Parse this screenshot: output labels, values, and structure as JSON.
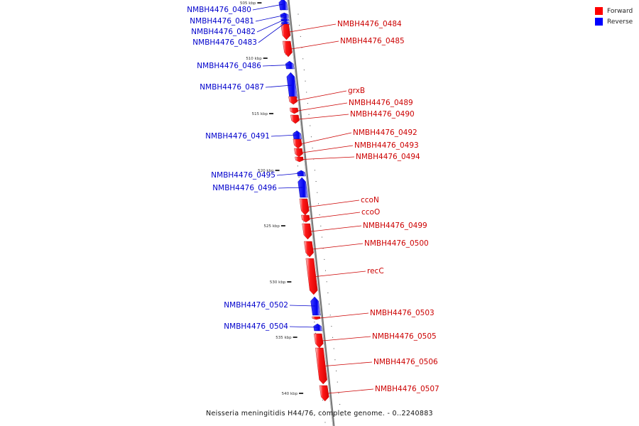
{
  "legend": {
    "forward_label": "Forward",
    "reverse_label": "Reverse",
    "forward_color": "#ff0000",
    "reverse_color": "#0000ff"
  },
  "caption": "Neisseria meningitidis H44/76, complete genome. - 0..2240883",
  "ticks": [
    {
      "label": "505 kbp"
    },
    {
      "label": "510 kbp"
    },
    {
      "label": "515 kbp"
    },
    {
      "label": "520 kbp"
    },
    {
      "label": "525 kbp"
    },
    {
      "label": "530 kbp"
    },
    {
      "label": "535 kbp"
    },
    {
      "label": "540 kbp"
    }
  ],
  "genes": [
    {
      "name": "NMBH4476_0480",
      "strand": "reverse"
    },
    {
      "name": "NMBH4476_0481",
      "strand": "reverse"
    },
    {
      "name": "NMBH4476_0482",
      "strand": "reverse"
    },
    {
      "name": "NMBH4476_0483",
      "strand": "reverse"
    },
    {
      "name": "NMBH4476_0484",
      "strand": "forward"
    },
    {
      "name": "NMBH4476_0485",
      "strand": "forward"
    },
    {
      "name": "NMBH4476_0486",
      "strand": "reverse"
    },
    {
      "name": "NMBH4476_0487",
      "strand": "reverse"
    },
    {
      "name": "grxB",
      "strand": "forward"
    },
    {
      "name": "NMBH4476_0489",
      "strand": "forward"
    },
    {
      "name": "NMBH4476_0490",
      "strand": "forward"
    },
    {
      "name": "NMBH4476_0491",
      "strand": "reverse"
    },
    {
      "name": "NMBH4476_0492",
      "strand": "forward"
    },
    {
      "name": "NMBH4476_0493",
      "strand": "forward"
    },
    {
      "name": "NMBH4476_0494",
      "strand": "forward"
    },
    {
      "name": "NMBH4476_0495",
      "strand": "reverse"
    },
    {
      "name": "NMBH4476_0496",
      "strand": "reverse"
    },
    {
      "name": "ccoN",
      "strand": "forward"
    },
    {
      "name": "ccoO",
      "strand": "forward"
    },
    {
      "name": "NMBH4476_0499",
      "strand": "forward"
    },
    {
      "name": "NMBH4476_0500",
      "strand": "forward"
    },
    {
      "name": "recC",
      "strand": "forward"
    },
    {
      "name": "NMBH4476_0502",
      "strand": "reverse"
    },
    {
      "name": "NMBH4476_0503",
      "strand": "forward"
    },
    {
      "name": "NMBH4476_0504",
      "strand": "reverse"
    },
    {
      "name": "NMBH4476_0505",
      "strand": "forward"
    },
    {
      "name": "NMBH4476_0506",
      "strand": "forward"
    },
    {
      "name": "NMBH4476_0507",
      "strand": "forward"
    }
  ]
}
